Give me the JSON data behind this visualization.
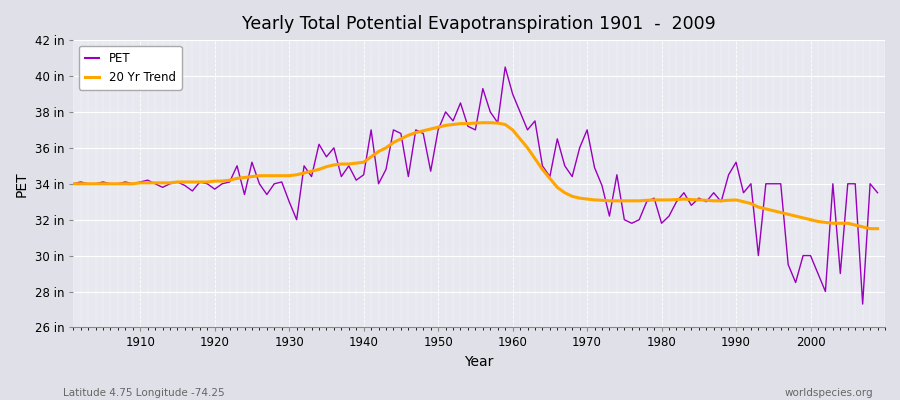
{
  "title": "Yearly Total Potential Evapotranspiration 1901  -  2009",
  "xlabel": "Year",
  "ylabel": "PET",
  "subtitle_left": "Latitude 4.75 Longitude -74.25",
  "subtitle_right": "worldspecies.org",
  "ylim": [
    26,
    42
  ],
  "yticks": [
    26,
    28,
    30,
    32,
    34,
    36,
    38,
    40,
    42
  ],
  "ytick_labels": [
    "26 in",
    "28 in",
    "30 in",
    "32 in",
    "34 in",
    "36 in",
    "38 in",
    "40 in",
    "42 in"
  ],
  "xlim": [
    1901,
    2010
  ],
  "xticks": [
    1910,
    1920,
    1930,
    1940,
    1950,
    1960,
    1970,
    1980,
    1990,
    2000
  ],
  "pet_color": "#9900BB",
  "trend_color": "#FFA500",
  "bg_color": "#E0E0E8",
  "plot_bg_color": "#E8E8F0",
  "legend_labels": [
    "PET",
    "20 Yr Trend"
  ],
  "pet_years": [
    1901,
    1902,
    1903,
    1904,
    1905,
    1906,
    1907,
    1908,
    1909,
    1910,
    1911,
    1912,
    1913,
    1914,
    1915,
    1916,
    1917,
    1918,
    1919,
    1920,
    1921,
    1922,
    1923,
    1924,
    1925,
    1926,
    1927,
    1928,
    1929,
    1930,
    1931,
    1932,
    1933,
    1934,
    1935,
    1936,
    1937,
    1938,
    1939,
    1940,
    1941,
    1942,
    1943,
    1944,
    1945,
    1946,
    1947,
    1948,
    1949,
    1950,
    1951,
    1952,
    1953,
    1954,
    1955,
    1956,
    1957,
    1958,
    1959,
    1960,
    1961,
    1962,
    1963,
    1964,
    1965,
    1966,
    1967,
    1968,
    1969,
    1970,
    1971,
    1972,
    1973,
    1974,
    1975,
    1976,
    1977,
    1978,
    1979,
    1980,
    1981,
    1982,
    1983,
    1984,
    1985,
    1986,
    1987,
    1988,
    1989,
    1990,
    1991,
    1992,
    1993,
    1994,
    1995,
    1996,
    1997,
    1998,
    1999,
    2000,
    2001,
    2002,
    2003,
    2004,
    2005,
    2006,
    2007,
    2008,
    2009
  ],
  "pet_values": [
    34.0,
    34.1,
    34.0,
    34.0,
    34.1,
    34.0,
    34.0,
    34.1,
    34.0,
    34.1,
    34.2,
    34.0,
    33.8,
    34.0,
    34.1,
    33.9,
    33.6,
    34.1,
    34.0,
    33.7,
    34.0,
    34.1,
    35.0,
    33.4,
    35.2,
    34.0,
    33.4,
    34.0,
    34.1,
    33.0,
    32.0,
    35.0,
    34.4,
    36.2,
    35.5,
    36.0,
    34.4,
    35.0,
    34.2,
    34.5,
    37.0,
    34.0,
    34.8,
    37.0,
    36.8,
    34.4,
    37.0,
    36.8,
    34.7,
    37.0,
    38.0,
    37.5,
    38.5,
    37.2,
    37.0,
    39.3,
    38.0,
    37.4,
    40.5,
    39.0,
    38.0,
    37.0,
    37.5,
    35.0,
    34.4,
    36.5,
    35.0,
    34.4,
    36.0,
    37.0,
    34.9,
    33.9,
    32.2,
    34.5,
    32.0,
    31.8,
    32.0,
    33.0,
    33.2,
    31.8,
    32.2,
    33.0,
    33.5,
    32.8,
    33.2,
    33.0,
    33.5,
    33.0,
    34.5,
    35.2,
    33.5,
    34.0,
    30.0,
    34.0,
    34.0,
    34.0,
    29.5,
    28.5,
    30.0,
    30.0,
    29.0,
    28.0,
    34.0,
    29.0,
    34.0,
    34.0,
    27.3,
    34.0,
    33.5
  ],
  "trend_years": [
    1901,
    1902,
    1903,
    1904,
    1905,
    1906,
    1907,
    1908,
    1909,
    1910,
    1911,
    1912,
    1913,
    1914,
    1915,
    1916,
    1917,
    1918,
    1919,
    1920,
    1921,
    1922,
    1923,
    1924,
    1925,
    1926,
    1927,
    1928,
    1929,
    1930,
    1931,
    1932,
    1933,
    1934,
    1935,
    1936,
    1937,
    1938,
    1939,
    1940,
    1941,
    1942,
    1943,
    1944,
    1945,
    1946,
    1947,
    1948,
    1949,
    1950,
    1951,
    1952,
    1953,
    1954,
    1955,
    1956,
    1957,
    1958,
    1959,
    1960,
    1961,
    1962,
    1963,
    1964,
    1965,
    1966,
    1967,
    1968,
    1969,
    1970,
    1971,
    1972,
    1973,
    1974,
    1975,
    1976,
    1977,
    1978,
    1979,
    1980,
    1981,
    1982,
    1983,
    1984,
    1985,
    1986,
    1987,
    1988,
    1989,
    1990,
    1991,
    1992,
    1993,
    1994,
    1995,
    1996,
    1997,
    1998,
    1999,
    2000,
    2001,
    2002,
    2003,
    2004,
    2005,
    2006,
    2007,
    2008,
    2009
  ],
  "trend_values": [
    34.0,
    34.0,
    34.0,
    34.0,
    34.0,
    34.0,
    34.0,
    34.0,
    34.0,
    34.05,
    34.05,
    34.05,
    34.05,
    34.05,
    34.1,
    34.1,
    34.1,
    34.1,
    34.1,
    34.15,
    34.15,
    34.2,
    34.3,
    34.35,
    34.4,
    34.45,
    34.45,
    34.45,
    34.45,
    34.45,
    34.5,
    34.6,
    34.7,
    34.8,
    34.95,
    35.05,
    35.1,
    35.1,
    35.15,
    35.2,
    35.5,
    35.8,
    36.0,
    36.3,
    36.5,
    36.7,
    36.85,
    36.95,
    37.05,
    37.15,
    37.25,
    37.3,
    37.35,
    37.35,
    37.38,
    37.4,
    37.4,
    37.38,
    37.3,
    37.0,
    36.5,
    36.0,
    35.4,
    34.8,
    34.3,
    33.8,
    33.5,
    33.3,
    33.2,
    33.15,
    33.1,
    33.08,
    33.05,
    33.05,
    33.05,
    33.05,
    33.05,
    33.08,
    33.1,
    33.1,
    33.1,
    33.12,
    33.15,
    33.12,
    33.1,
    33.08,
    33.05,
    33.05,
    33.08,
    33.1,
    33.0,
    32.9,
    32.7,
    32.6,
    32.5,
    32.4,
    32.3,
    32.2,
    32.1,
    32.0,
    31.9,
    31.85,
    31.8,
    31.8,
    31.8,
    31.7,
    31.6,
    31.5,
    31.5
  ]
}
